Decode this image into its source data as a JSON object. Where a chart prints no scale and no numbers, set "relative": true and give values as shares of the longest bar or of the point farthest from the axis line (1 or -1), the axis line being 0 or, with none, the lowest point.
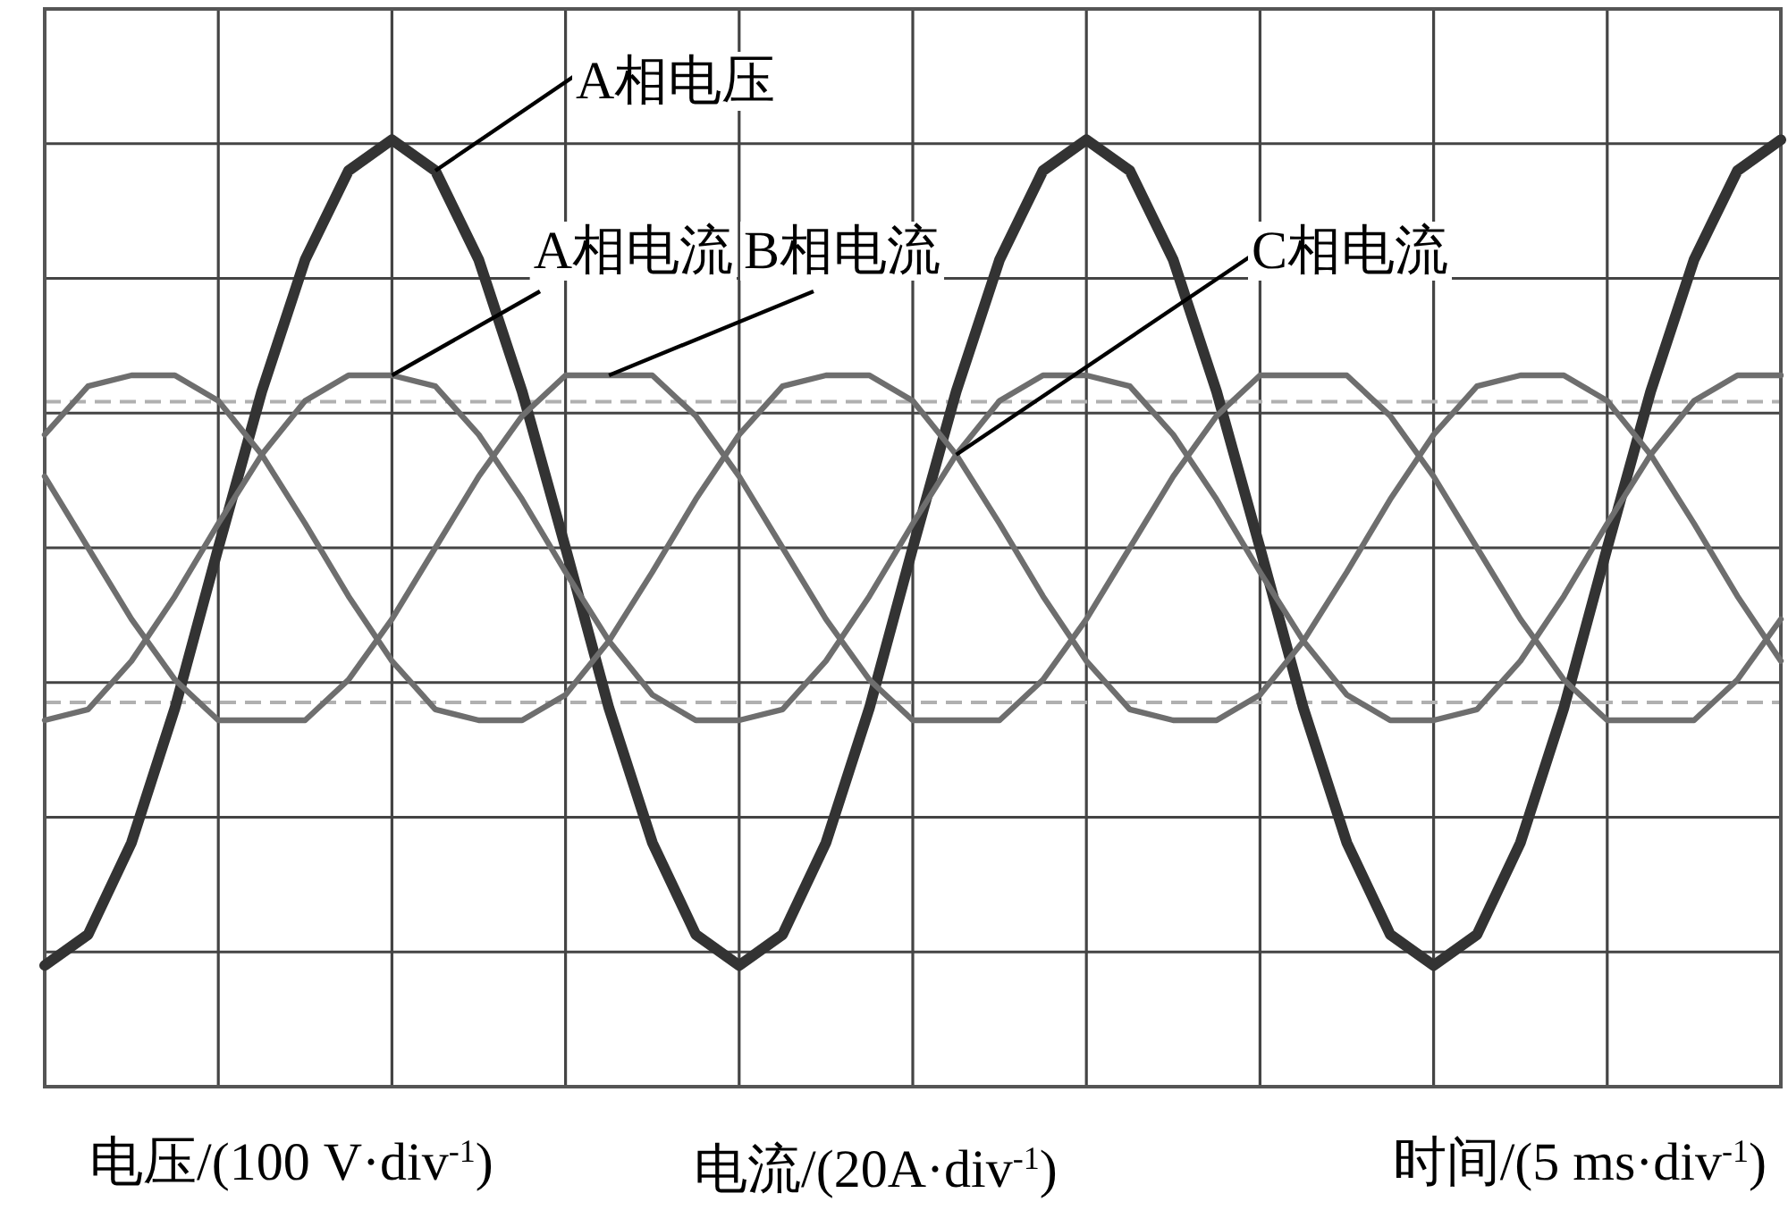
{
  "chart_data": {
    "type": "line",
    "relative": true,
    "grid": true,
    "legend": false,
    "xlabel": "时间/(5 ms·div$^{-1}$)",
    "annotations": [
      "电压/(100 V·div$^{-1}$)",
      "电流/(20A·div$^{-1}$)"
    ],
    "categories": [
      null,
      null,
      null,
      null,
      null,
      null,
      null,
      null,
      null,
      null,
      null,
      null,
      null,
      null,
      null,
      null,
      null,
      null,
      null,
      null,
      null,
      null,
      null,
      null,
      null,
      null,
      null,
      null,
      null,
      null,
      null,
      null,
      null,
      null,
      null,
      null,
      null,
      null,
      null,
      null,
      null
    ],
    "series": [
      {
        "name": "A相电压",
        "color": "#333333",
        "values": [
          -1,
          -0.926,
          -0.706,
          -0.384,
          0,
          0.374,
          0.69,
          0.903,
          0.977,
          0.903,
          0.69,
          0.374,
          0,
          -0.384,
          -0.706,
          -0.926,
          -1,
          -0.926,
          -0.706,
          -0.384,
          0,
          0.374,
          0.69,
          0.903,
          0.977,
          0.903,
          0.69,
          0.374,
          0,
          -0.384,
          -0.706,
          -0.926,
          -1,
          -0.926,
          -0.706,
          -0.384,
          0,
          0.374,
          0.69,
          0.903,
          0.977
        ]
      },
      {
        "name": "A相电流",
        "color": "#6e6e6e",
        "values": [
          -0.413,
          -0.387,
          -0.271,
          -0.116,
          0.058,
          0.223,
          0.352,
          0.413,
          0.413,
          0.387,
          0.271,
          0.116,
          -0.058,
          -0.223,
          -0.352,
          -0.413,
          -0.413,
          -0.387,
          -0.271,
          -0.116,
          0.058,
          0.223,
          0.352,
          0.413,
          0.413,
          0.387,
          0.271,
          0.116,
          -0.058,
          -0.223,
          -0.352,
          -0.413,
          -0.413,
          -0.387,
          -0.271,
          -0.116,
          0.058,
          0.223,
          0.352,
          0.413,
          0.413
        ]
      },
      {
        "name": "B相电流",
        "color": "#6e6e6e",
        "values": [
          0.171,
          0,
          -0.171,
          -0.316,
          -0.413,
          -0.413,
          -0.413,
          -0.316,
          -0.171,
          0,
          0.171,
          0.316,
          0.413,
          0.413,
          0.413,
          0.316,
          0.171,
          0,
          -0.171,
          -0.316,
          -0.413,
          -0.413,
          -0.413,
          -0.316,
          -0.171,
          0,
          0.171,
          0.316,
          0.413,
          0.413,
          0.413,
          0.316,
          0.171,
          0,
          -0.171,
          -0.316,
          -0.413,
          -0.413,
          -0.413,
          -0.316,
          -0.171
        ]
      },
      {
        "name": "C相电流",
        "color": "#6e6e6e",
        "values": [
          0.271,
          0.387,
          0.413,
          0.413,
          0.352,
          0.223,
          0.058,
          -0.116,
          -0.271,
          -0.387,
          -0.413,
          -0.413,
          -0.352,
          -0.223,
          -0.058,
          0.116,
          0.271,
          0.387,
          0.413,
          0.413,
          0.352,
          0.223,
          0.058,
          -0.116,
          -0.271,
          -0.387,
          -0.413,
          -0.413,
          -0.352,
          -0.223,
          -0.058,
          0.116,
          0.271,
          0.387,
          0.413,
          0.413,
          0.352,
          0.223,
          0.058,
          -0.116,
          -0.271
        ]
      }
    ],
    "ref_lines": [
      {
        "axis": "y",
        "value": 0.35,
        "color": "#b0b0b0",
        "line_style": "dashed"
      },
      {
        "axis": "y",
        "value": -0.37,
        "color": "#b0b0b0",
        "line_style": "dashed"
      }
    ]
  }
}
